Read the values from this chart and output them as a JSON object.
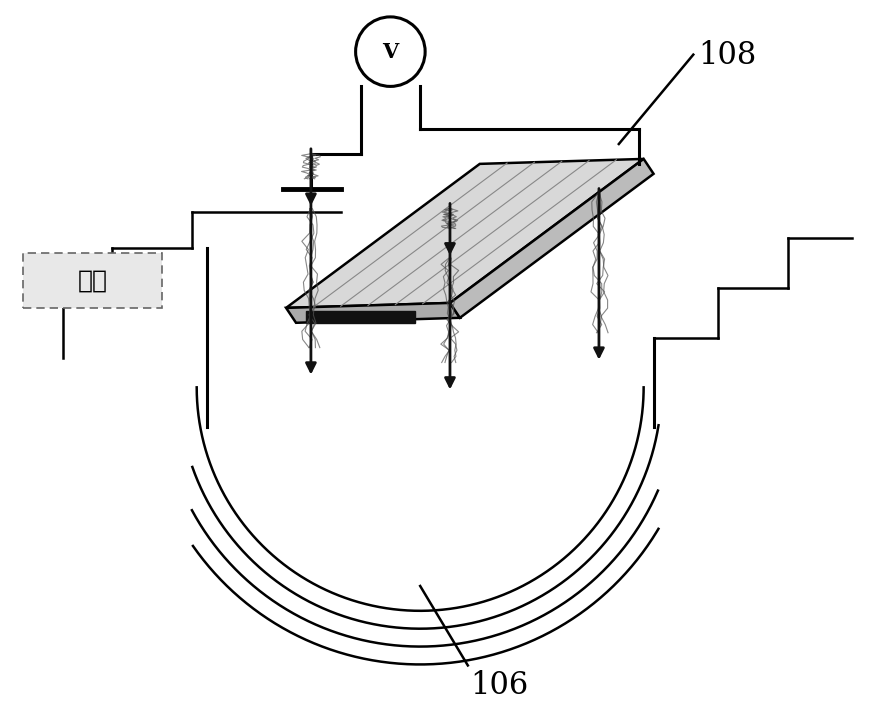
{
  "title": "",
  "bg_color": "#ffffff",
  "label_108": "108",
  "label_106": "106",
  "label_airflow": "气流",
  "label_v": "V",
  "fig_width": 8.91,
  "fig_height": 7.09,
  "dpi": 100
}
